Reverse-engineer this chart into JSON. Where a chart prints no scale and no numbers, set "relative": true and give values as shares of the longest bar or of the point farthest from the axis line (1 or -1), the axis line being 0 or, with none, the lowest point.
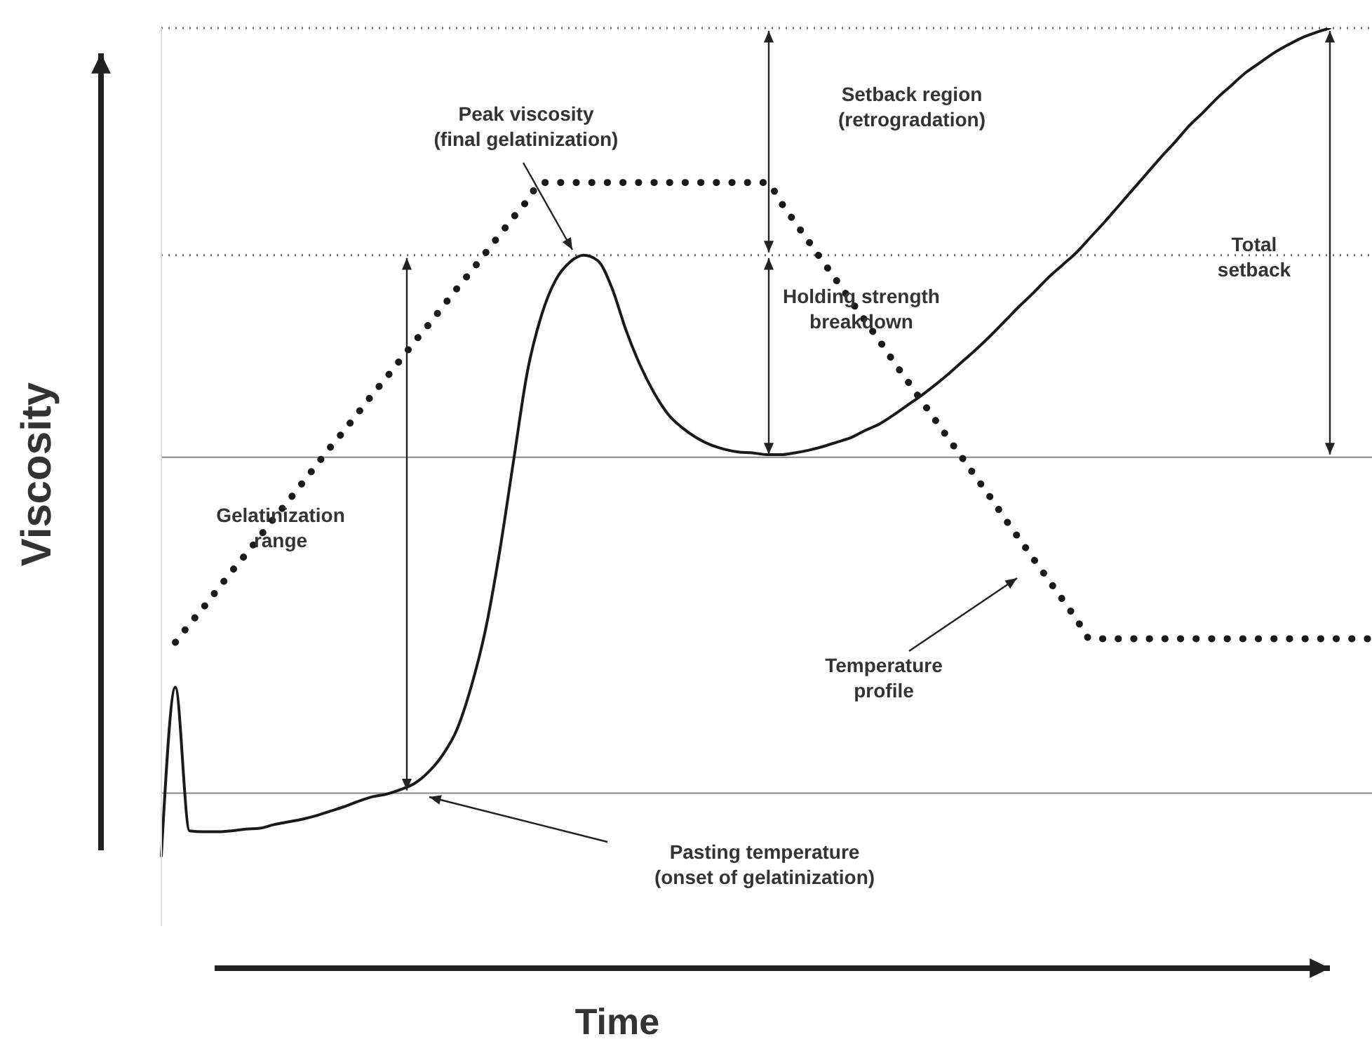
{
  "chart_data": {
    "type": "line",
    "relative": true,
    "xlabel": "Time",
    "ylabel": "Viscosity",
    "marker": "none",
    "categories": [
      null,
      null,
      null,
      null,
      null,
      null,
      null,
      null,
      null,
      null,
      null,
      null,
      null,
      null,
      null,
      null,
      null,
      null,
      null,
      null,
      null,
      null,
      null,
      null,
      null,
      null,
      null,
      null,
      null,
      null,
      null,
      null,
      null,
      null,
      null,
      null,
      null,
      null,
      null,
      null,
      null,
      null,
      null,
      null,
      null,
      null,
      null,
      null,
      null,
      null,
      null,
      null,
      null,
      null,
      null,
      null,
      null,
      null,
      null,
      null,
      null,
      null,
      null,
      null,
      null,
      null,
      null,
      null,
      null,
      null,
      null,
      null,
      null,
      null,
      null,
      null,
      null,
      null,
      null,
      null,
      null,
      null,
      null,
      null,
      null,
      null,
      null
    ],
    "series": [
      {
        "color": "#1a1a1a",
        "line_style": "solid",
        "values": [
          0.078,
          0.266,
          0.106,
          0.105,
          0.105,
          0.106,
          0.108,
          0.109,
          0.113,
          0.116,
          0.119,
          0.123,
          0.128,
          0.133,
          0.139,
          0.144,
          0.147,
          0.152,
          0.159,
          0.172,
          0.191,
          0.219,
          0.266,
          0.328,
          0.414,
          0.516,
          0.617,
          0.68,
          0.719,
          0.739,
          0.747,
          0.741,
          0.711,
          0.664,
          0.625,
          0.594,
          0.57,
          0.555,
          0.544,
          0.536,
          0.531,
          0.528,
          0.527,
          0.525,
          0.525,
          0.527,
          0.53,
          0.534,
          0.539,
          0.544,
          0.552,
          0.559,
          0.569,
          0.58,
          0.591,
          0.603,
          0.616,
          0.63,
          0.644,
          0.659,
          0.675,
          0.691,
          0.706,
          0.722,
          0.736,
          0.75,
          0.767,
          0.784,
          0.802,
          0.82,
          0.838,
          0.856,
          0.873,
          0.891,
          0.906,
          0.922,
          0.936,
          0.95,
          0.961,
          0.972,
          0.981,
          0.989,
          0.995,
          1.0,
          null,
          null,
          null
        ]
      },
      {
        "color": "#1a1a1a",
        "line_style": "dotted",
        "values": [
          null,
          0.316,
          0.336,
          0.355,
          0.375,
          0.395,
          0.414,
          0.434,
          0.454,
          0.473,
          0.493,
          0.513,
          0.533,
          0.552,
          0.572,
          0.592,
          0.611,
          0.631,
          0.651,
          0.67,
          0.69,
          0.71,
          0.729,
          0.749,
          0.769,
          0.789,
          0.808,
          0.828,
          0.828,
          0.828,
          0.828,
          0.828,
          0.828,
          0.828,
          0.828,
          0.828,
          0.828,
          0.828,
          0.828,
          0.828,
          0.828,
          0.828,
          0.828,
          0.828,
          0.806,
          0.784,
          0.762,
          0.74,
          0.718,
          0.696,
          0.674,
          0.652,
          0.629,
          0.607,
          0.585,
          0.563,
          0.541,
          0.519,
          0.497,
          0.475,
          0.452,
          0.43,
          0.408,
          0.386,
          0.364,
          0.342,
          0.32,
          0.32,
          0.32,
          0.32,
          0.32,
          0.32,
          0.32,
          0.32,
          0.32,
          0.32,
          0.32,
          0.32,
          0.32,
          0.32,
          0.32,
          0.32,
          0.32,
          0.32,
          0.32,
          0.32,
          0.32
        ]
      }
    ],
    "ref_lines": [
      {
        "axis": "y",
        "value": 1.0,
        "color": "#666666",
        "line_style": "dotted"
      },
      {
        "axis": "y",
        "value": 0.747,
        "color": "#666666",
        "line_style": "dotted"
      },
      {
        "axis": "y",
        "value": 0.522,
        "color": "#888888",
        "line_style": "solid"
      },
      {
        "axis": "y",
        "value": 0.148,
        "color": "#888888",
        "line_style": "solid"
      }
    ],
    "annotations": [
      "Peak viscosity\n(final gelatinization)",
      "Setback region\n(retrogradation)",
      "Total\nsetback",
      "Holding strength\nbreakdown",
      "Gelatinization\nrange",
      "Temperature\nprofile",
      "Pasting temperature\n(onset of gelatinization)"
    ]
  }
}
